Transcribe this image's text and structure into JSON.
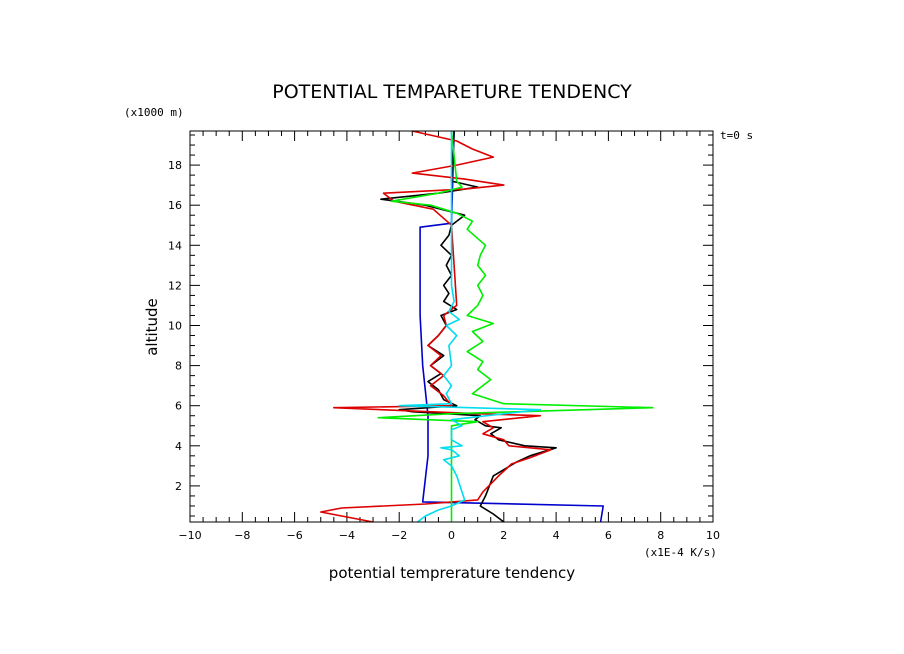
{
  "chart_data": {
    "type": "line",
    "title": "POTENTIAL TEMPARETURE TENDENCY",
    "xlabel": "potential temprerature tendency",
    "ylabel": "altitude",
    "x_unit": "(x1E-4 K/s)",
    "y_unit": "(x1000 m)",
    "annotation": "t=0 s",
    "xlim": [
      -10,
      10
    ],
    "ylim": [
      0.2,
      19.7
    ],
    "x_ticks": [
      "-10",
      "-8",
      "-6",
      "-4",
      "-2",
      "0",
      "2",
      "4",
      "6",
      "8",
      "10"
    ],
    "y_ticks": [
      "2",
      "4",
      "6",
      "8",
      "10",
      "12",
      "14",
      "16",
      "18"
    ],
    "grid": false,
    "series": [
      {
        "color": "#0000cc",
        "points": [
          [
            5.7,
            0.2
          ],
          [
            5.8,
            1.0
          ],
          [
            -1.1,
            1.2
          ],
          [
            -0.9,
            3.5
          ],
          [
            -0.9,
            5.5
          ],
          [
            -1.1,
            8.0
          ],
          [
            -1.2,
            10.5
          ],
          [
            -1.2,
            12.5
          ],
          [
            -1.2,
            14.9
          ],
          [
            0.0,
            15.1
          ],
          [
            0.1,
            19.7
          ]
        ]
      },
      {
        "color": "#000000",
        "points": [
          [
            2.0,
            0.2
          ],
          [
            1.6,
            0.6
          ],
          [
            1.1,
            1.0
          ],
          [
            1.3,
            1.5
          ],
          [
            1.6,
            2.5
          ],
          [
            2.5,
            3.2
          ],
          [
            3.0,
            3.5
          ],
          [
            4.0,
            3.9
          ],
          [
            2.8,
            4.0
          ],
          [
            1.8,
            4.3
          ],
          [
            1.5,
            4.6
          ],
          [
            1.9,
            4.9
          ],
          [
            1.3,
            5.0
          ],
          [
            0.9,
            5.3
          ],
          [
            1.1,
            5.5
          ],
          [
            -1.5,
            5.7
          ],
          [
            -2.0,
            5.8
          ],
          [
            0.2,
            6.0
          ],
          [
            -0.3,
            6.3
          ],
          [
            -0.5,
            6.8
          ],
          [
            -0.9,
            7.2
          ],
          [
            -0.4,
            7.6
          ],
          [
            -0.8,
            8.0
          ],
          [
            -0.3,
            8.5
          ],
          [
            -0.9,
            9.0
          ],
          [
            -0.5,
            9.5
          ],
          [
            -0.2,
            10.0
          ],
          [
            -0.4,
            10.5
          ],
          [
            0.2,
            10.8
          ],
          [
            -0.3,
            11.2
          ],
          [
            -0.1,
            11.6
          ],
          [
            -0.3,
            12.0
          ],
          [
            0.0,
            12.5
          ],
          [
            -0.2,
            13.0
          ],
          [
            0.0,
            13.5
          ],
          [
            -0.4,
            14.0
          ],
          [
            -0.1,
            14.5
          ],
          [
            0.0,
            15.0
          ],
          [
            0.5,
            15.5
          ],
          [
            -1.0,
            16.0
          ],
          [
            -2.7,
            16.3
          ],
          [
            -0.5,
            16.6
          ],
          [
            1.0,
            16.9
          ],
          [
            0.0,
            17.2
          ],
          [
            0.1,
            19.7
          ]
        ]
      },
      {
        "color": "#dd0000",
        "points": [
          [
            -3.0,
            0.2
          ],
          [
            -5.0,
            0.7
          ],
          [
            -4.2,
            0.9
          ],
          [
            -1.0,
            1.1
          ],
          [
            1.0,
            1.3
          ],
          [
            1.2,
            1.7
          ],
          [
            1.8,
            2.5
          ],
          [
            2.3,
            3.1
          ],
          [
            3.0,
            3.4
          ],
          [
            3.8,
            3.8
          ],
          [
            2.2,
            4.0
          ],
          [
            2.0,
            4.3
          ],
          [
            1.2,
            4.6
          ],
          [
            1.6,
            4.9
          ],
          [
            1.2,
            5.2
          ],
          [
            3.4,
            5.5
          ],
          [
            1.0,
            5.6
          ],
          [
            -4.5,
            5.9
          ],
          [
            0.0,
            6.0
          ],
          [
            -0.3,
            6.5
          ],
          [
            -0.8,
            7.0
          ],
          [
            -0.3,
            7.5
          ],
          [
            -0.8,
            8.0
          ],
          [
            -0.4,
            8.5
          ],
          [
            -0.9,
            9.0
          ],
          [
            -0.5,
            9.5
          ],
          [
            -0.2,
            10.0
          ],
          [
            -0.3,
            10.5
          ],
          [
            0.2,
            11.0
          ],
          [
            0.0,
            15.0
          ],
          [
            -0.7,
            15.8
          ],
          [
            -2.2,
            16.2
          ],
          [
            -2.6,
            16.6
          ],
          [
            0.5,
            16.8
          ],
          [
            2.0,
            17.0
          ],
          [
            0.5,
            17.3
          ],
          [
            -1.5,
            17.6
          ],
          [
            0.2,
            18.0
          ],
          [
            1.6,
            18.4
          ],
          [
            0.8,
            18.8
          ],
          [
            0.2,
            19.2
          ],
          [
            -1.5,
            19.7
          ]
        ]
      },
      {
        "color": "#00ee00",
        "points": [
          [
            0.0,
            0.2
          ],
          [
            0.0,
            5.0
          ],
          [
            1.0,
            5.2
          ],
          [
            -2.8,
            5.4
          ],
          [
            0.0,
            5.6
          ],
          [
            7.7,
            5.9
          ],
          [
            2.0,
            6.1
          ],
          [
            0.8,
            6.6
          ],
          [
            1.5,
            7.3
          ],
          [
            1.0,
            7.8
          ],
          [
            1.2,
            8.2
          ],
          [
            0.6,
            8.7
          ],
          [
            1.2,
            9.2
          ],
          [
            0.8,
            9.7
          ],
          [
            1.6,
            10.1
          ],
          [
            0.6,
            10.5
          ],
          [
            1.0,
            11.0
          ],
          [
            1.2,
            11.5
          ],
          [
            1.0,
            12.0
          ],
          [
            1.3,
            12.5
          ],
          [
            1.0,
            13.0
          ],
          [
            1.1,
            13.5
          ],
          [
            1.3,
            14.0
          ],
          [
            0.6,
            14.8
          ],
          [
            0.8,
            15.2
          ],
          [
            0.2,
            15.6
          ],
          [
            -0.8,
            16.0
          ],
          [
            -2.3,
            16.2
          ],
          [
            -0.5,
            16.6
          ],
          [
            0.4,
            16.9
          ],
          [
            0.2,
            17.2
          ],
          [
            0.0,
            19.7
          ]
        ]
      },
      {
        "color": "#00ddee",
        "points": [
          [
            -1.3,
            0.2
          ],
          [
            -1.0,
            0.5
          ],
          [
            -0.5,
            0.8
          ],
          [
            0.0,
            1.0
          ],
          [
            0.5,
            1.3
          ],
          [
            0.2,
            2.5
          ],
          [
            0.0,
            3.0
          ],
          [
            -0.3,
            3.3
          ],
          [
            0.3,
            3.5
          ],
          [
            0.0,
            3.8
          ],
          [
            -0.4,
            3.9
          ],
          [
            0.4,
            4.0
          ],
          [
            0.0,
            4.3
          ],
          [
            0.0,
            4.8
          ],
          [
            0.4,
            5.0
          ],
          [
            0.0,
            5.3
          ],
          [
            3.4,
            5.8
          ],
          [
            -2.0,
            6.0
          ],
          [
            0.0,
            6.1
          ],
          [
            -0.2,
            6.6
          ],
          [
            0.0,
            7.0
          ],
          [
            -0.3,
            7.5
          ],
          [
            0.0,
            8.0
          ],
          [
            -0.1,
            9.0
          ],
          [
            0.2,
            9.5
          ],
          [
            -0.2,
            10.0
          ],
          [
            0.3,
            10.3
          ],
          [
            -0.1,
            10.7
          ],
          [
            0.1,
            11.2
          ],
          [
            0.0,
            12.0
          ],
          [
            0.0,
            19.7
          ]
        ]
      }
    ]
  }
}
